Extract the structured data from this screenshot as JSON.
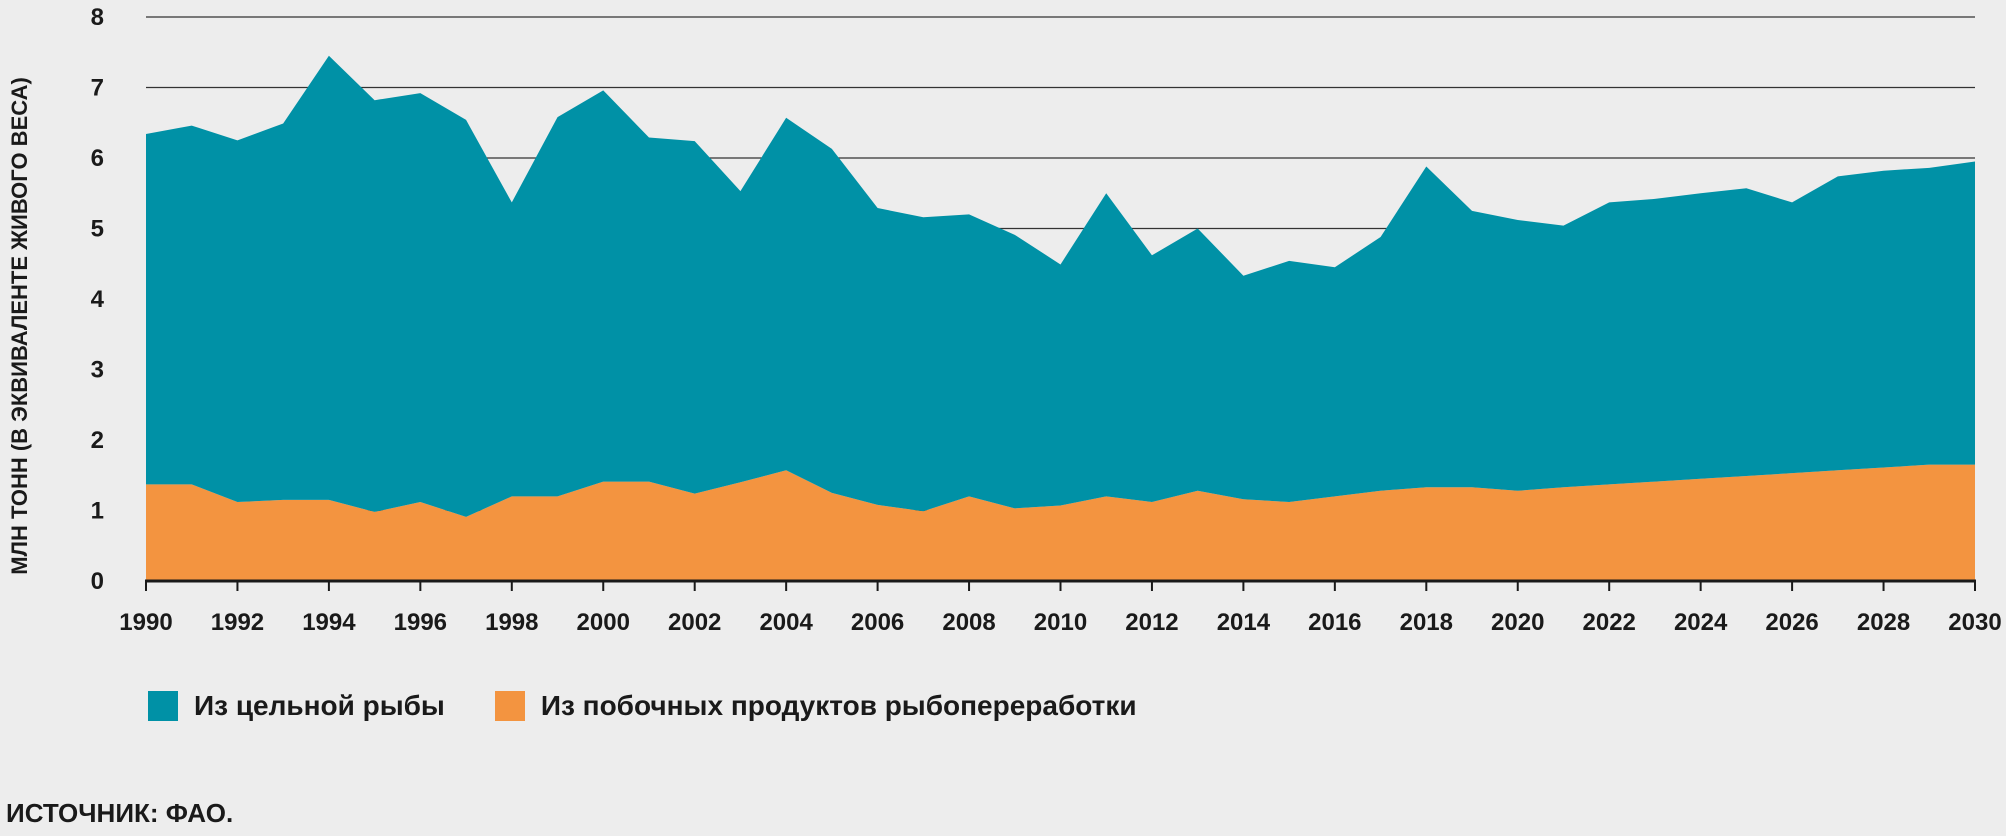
{
  "chart_data": {
    "type": "area",
    "stacked": true,
    "title": "",
    "xlabel": "",
    "ylabel": "МЛН ТОНН (В ЭКВИВАЛЕНТЕ ЖИВОГО ВЕСА)",
    "ylim": [
      0,
      8
    ],
    "xlim": [
      1990,
      2030
    ],
    "yticks": [
      "0",
      "1",
      "2",
      "3",
      "4",
      "5",
      "6",
      "7",
      "8"
    ],
    "xticks": [
      "1990",
      "1992",
      "1994",
      "1996",
      "1998",
      "2000",
      "2002",
      "2004",
      "2006",
      "2008",
      "2010",
      "2012",
      "2014",
      "2016",
      "2018",
      "2020",
      "2022",
      "2024",
      "2026",
      "2028",
      "2030"
    ],
    "grid": true,
    "legend_position": "bottom-left",
    "x": [
      1990,
      1991,
      1992,
      1993,
      1994,
      1995,
      1996,
      1997,
      1998,
      1999,
      2000,
      2001,
      2002,
      2003,
      2004,
      2005,
      2006,
      2007,
      2008,
      2009,
      2010,
      2011,
      2012,
      2013,
      2014,
      2015,
      2016,
      2017,
      2018,
      2019,
      2020,
      2021,
      2022,
      2023,
      2024,
      2025,
      2026,
      2027,
      2028,
      2029,
      2030
    ],
    "series": [
      {
        "name": "Из побочных продуктов рыбопереработки",
        "color": "#f39440",
        "values": [
          1.37,
          1.37,
          1.12,
          1.15,
          1.15,
          0.98,
          1.12,
          0.91,
          1.2,
          1.2,
          1.41,
          1.41,
          1.24,
          1.4,
          1.57,
          1.25,
          1.08,
          0.99,
          1.2,
          1.03,
          1.07,
          1.2,
          1.12,
          1.28,
          1.16,
          1.12,
          1.2,
          1.28,
          1.33,
          1.33,
          1.28,
          1.33,
          1.37,
          1.41,
          1.45,
          1.49,
          1.53,
          1.57,
          1.61,
          1.65,
          1.65
        ]
      },
      {
        "name": "Из цельной рыбы",
        "color": "#0091a6",
        "values": [
          4.97,
          5.09,
          5.13,
          5.34,
          6.3,
          5.84,
          5.8,
          5.63,
          4.17,
          5.38,
          5.55,
          4.88,
          5.0,
          4.13,
          5.0,
          4.88,
          4.21,
          4.17,
          4.0,
          3.88,
          3.42,
          4.3,
          3.5,
          3.72,
          3.17,
          3.42,
          3.25,
          3.6,
          4.55,
          3.92,
          3.84,
          3.71,
          4.0,
          4.01,
          4.05,
          4.08,
          3.84,
          4.17,
          4.21,
          4.21,
          4.3
        ]
      }
    ],
    "colors": {
      "whole_fish": "#0091a6",
      "byproducts": "#f39440",
      "background": "#ededed",
      "gridline": "#333333"
    }
  },
  "legend": {
    "whole": "Из цельной рыбы",
    "byproducts": "Из побочных продуктов рыбопереработки"
  },
  "source": "ИСТОЧНИК: ФАО."
}
